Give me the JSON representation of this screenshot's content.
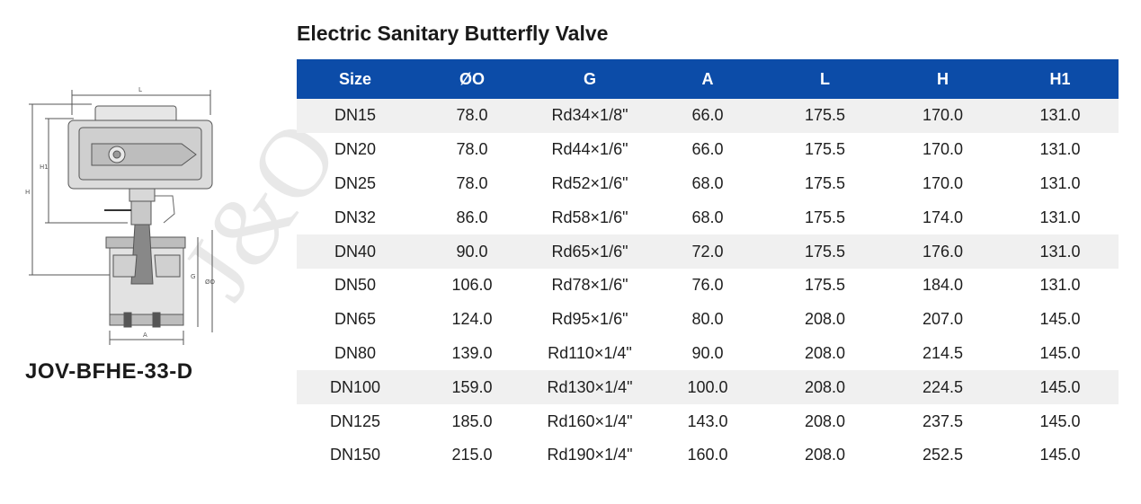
{
  "title": "Electric Sanitary Butterfly Valve",
  "model": "JOV-BFHE-33-D",
  "watermark": "J&O",
  "headers": [
    "Size",
    "ØO",
    "G",
    "A",
    "L",
    "H",
    "H1"
  ],
  "rows": [
    [
      "DN15",
      "78.0",
      "Rd34×1/8\"",
      "66.0",
      "175.5",
      "170.0",
      "131.0"
    ],
    [
      "DN20",
      "78.0",
      "Rd44×1/6\"",
      "66.0",
      "175.5",
      "170.0",
      "131.0"
    ],
    [
      "DN25",
      "78.0",
      "Rd52×1/6\"",
      "68.0",
      "175.5",
      "170.0",
      "131.0"
    ],
    [
      "DN32",
      "86.0",
      "Rd58×1/6\"",
      "68.0",
      "175.5",
      "174.0",
      "131.0"
    ],
    [
      "DN40",
      "90.0",
      "Rd65×1/6\"",
      "72.0",
      "175.5",
      "176.0",
      "131.0"
    ],
    [
      "DN50",
      "106.0",
      "Rd78×1/6\"",
      "76.0",
      "175.5",
      "184.0",
      "131.0"
    ],
    [
      "DN65",
      "124.0",
      "Rd95×1/6\"",
      "80.0",
      "208.0",
      "207.0",
      "145.0"
    ],
    [
      "DN80",
      "139.0",
      "Rd110×1/4\"",
      "90.0",
      "208.0",
      "214.5",
      "145.0"
    ],
    [
      "DN100",
      "159.0",
      "Rd130×1/4\"",
      "100.0",
      "208.0",
      "224.5",
      "145.0"
    ],
    [
      "DN125",
      "185.0",
      "Rd160×1/4\"",
      "143.0",
      "208.0",
      "237.5",
      "145.0"
    ],
    [
      "DN150",
      "215.0",
      "Rd190×1/4\"",
      "160.0",
      "208.0",
      "252.5",
      "145.0"
    ]
  ],
  "drawing_labels": {
    "L": "L",
    "H": "H",
    "H1": "H1",
    "G": "G",
    "O": "ØO",
    "A": "A"
  },
  "colors": {
    "header_bg": "#0c4ca8",
    "shaded_row": "#f0f0f0",
    "text": "#1e1e1e"
  }
}
